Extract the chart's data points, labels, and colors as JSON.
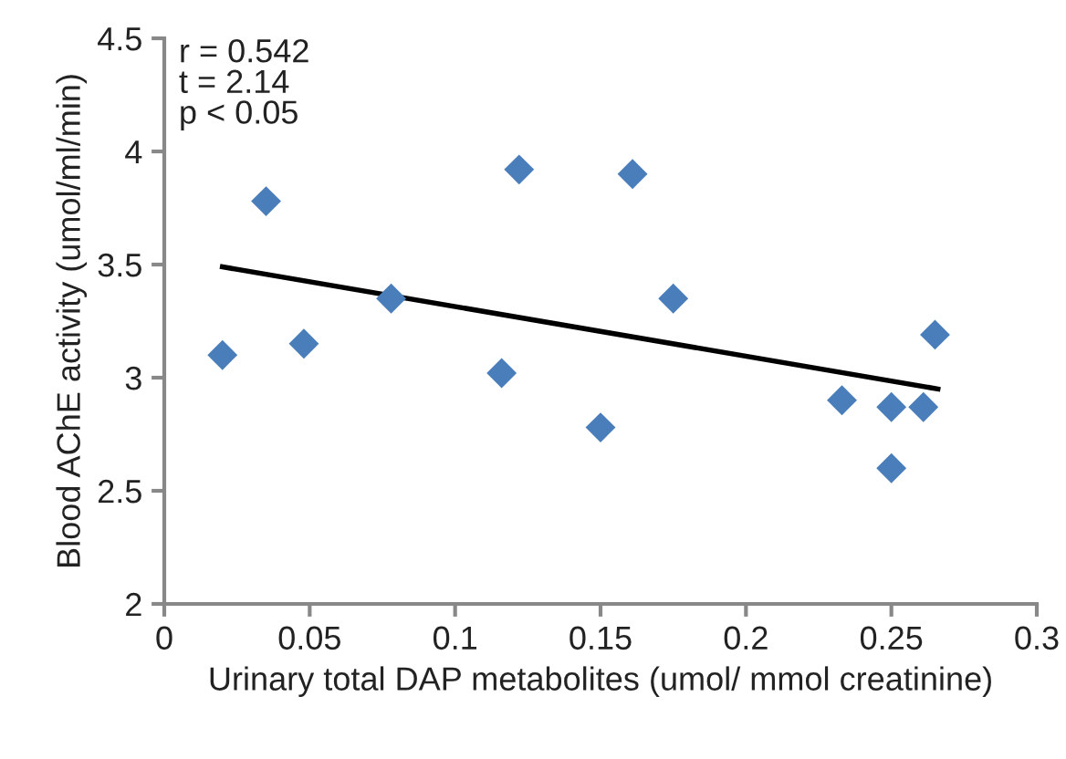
{
  "chart_data": {
    "type": "scatter",
    "xlabel": "Urinary total DAP metabolites (umol/ mmol creatinine)",
    "ylabel": "Blood AChE activity (umol/ml/min)",
    "annotations": [
      "r = 0.542\nt = 2.14\np < 0.05"
    ],
    "grid": false,
    "legend": false,
    "xlim": [
      0,
      0.3
    ],
    "xticks": [
      0,
      0.05,
      0.1,
      0.15,
      0.2,
      0.25,
      0.3
    ],
    "ylim": [
      2,
      4.5
    ],
    "yticks": [
      2,
      2.5,
      3,
      3.5,
      4,
      4.5
    ],
    "series": [
      {
        "marker": "diamond",
        "color": "#4a7ebb",
        "x": [
          0.02,
          0.035,
          0.048,
          0.078,
          0.116,
          0.122,
          0.15,
          0.161,
          0.175,
          0.233,
          0.25,
          0.25,
          0.261,
          0.265
        ],
        "values": [
          3.1,
          3.78,
          3.15,
          3.35,
          3.02,
          3.92,
          2.78,
          3.9,
          3.35,
          2.9,
          2.87,
          2.6,
          2.87,
          3.19
        ]
      },
      {
        "type": "line",
        "color": "#000000",
        "x": [
          0.02,
          0.266
        ],
        "values": [
          3.49,
          2.95
        ]
      }
    ]
  }
}
